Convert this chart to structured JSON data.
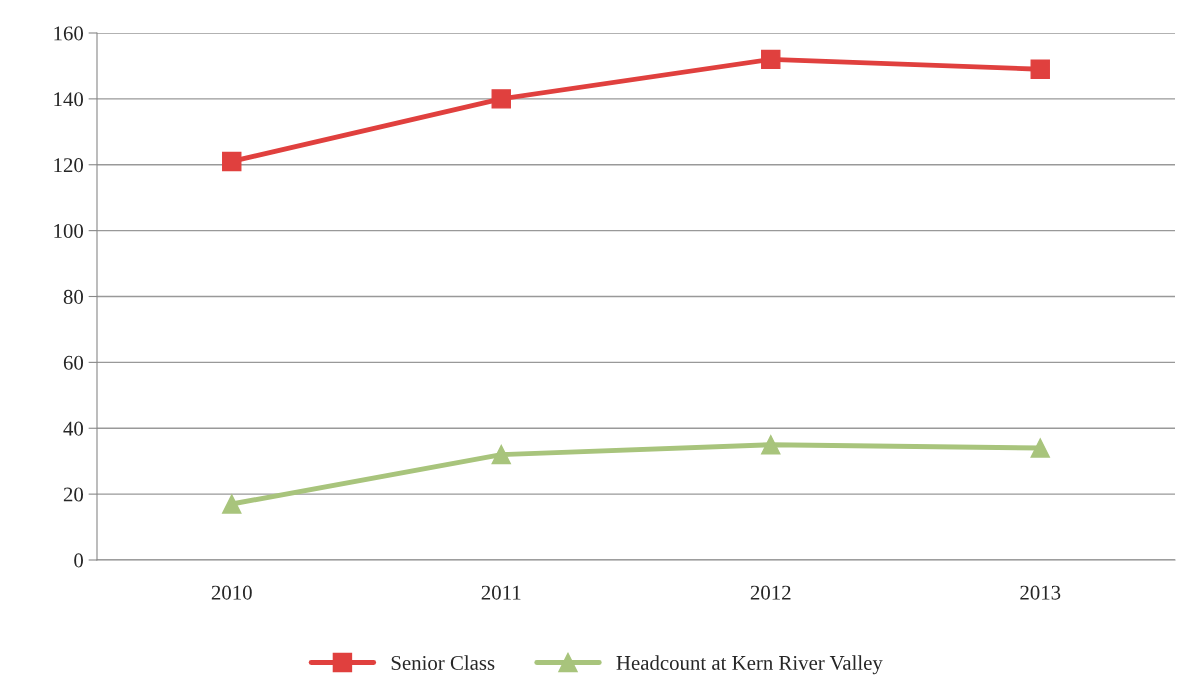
{
  "chart_data": {
    "type": "line",
    "categories": [
      "2010",
      "2011",
      "2012",
      "2013"
    ],
    "series": [
      {
        "name": "Senior Class",
        "color": "#e0403e",
        "marker": "square",
        "values": [
          121,
          140,
          152,
          149
        ]
      },
      {
        "name": "Headcount at Kern River Valley",
        "color": "#a8c47c",
        "marker": "triangle",
        "values": [
          17,
          32,
          35,
          34
        ]
      }
    ],
    "ylim": [
      0,
      160
    ],
    "yticks": [
      0,
      20,
      40,
      60,
      80,
      100,
      120,
      140,
      160
    ],
    "grid": "y",
    "legend": "bottom",
    "line_style": "solid"
  }
}
